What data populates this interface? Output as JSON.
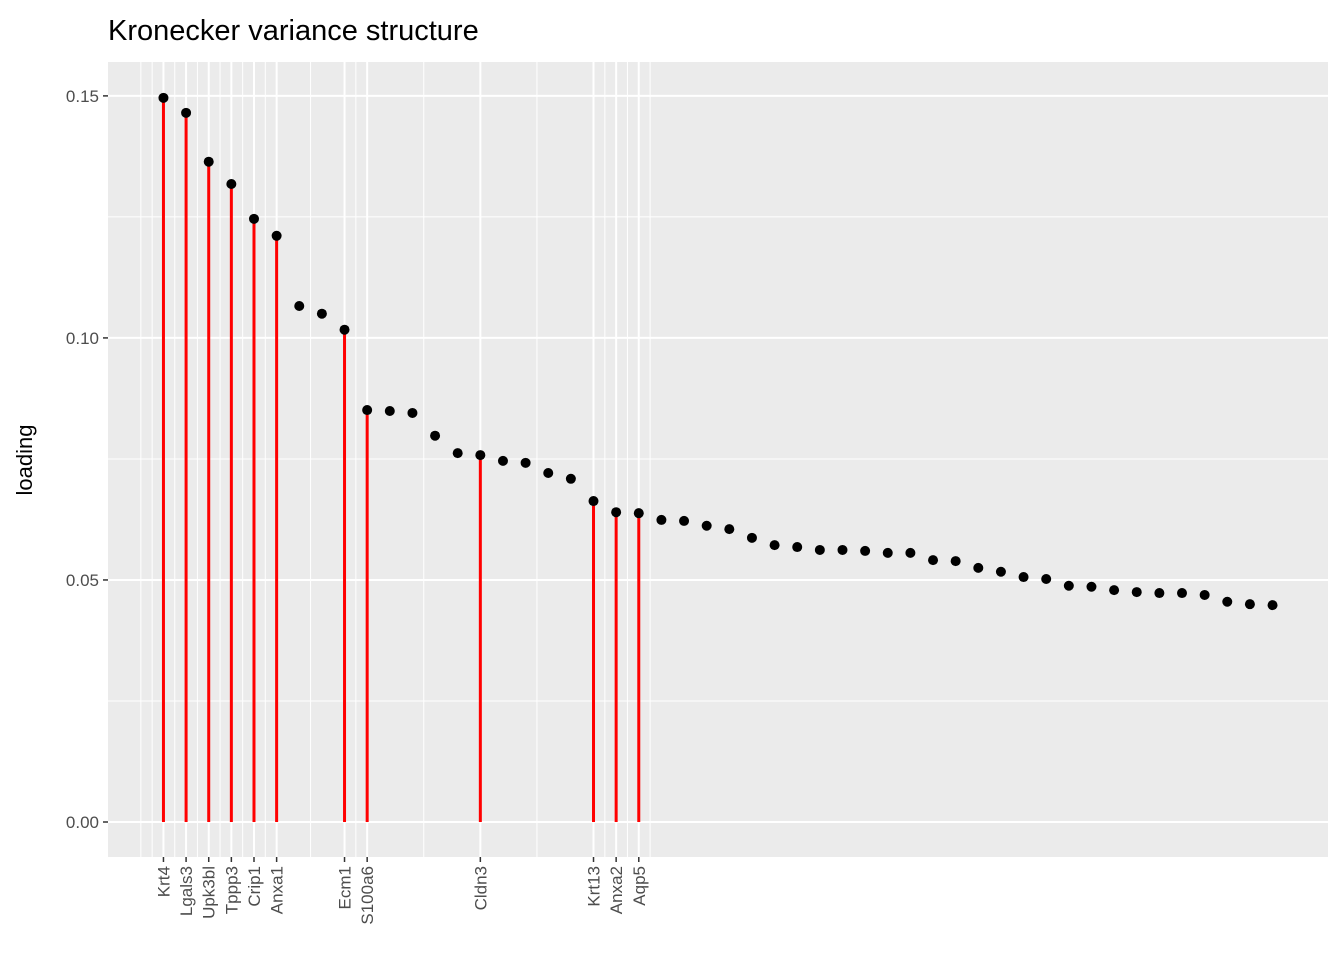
{
  "chart_data": {
    "type": "lollipop",
    "title": "Kronecker variance structure",
    "y_label": "loading",
    "x": [
      1,
      2,
      3,
      4,
      5,
      6,
      7,
      8,
      9,
      10,
      11,
      12,
      13,
      14,
      15,
      16,
      17,
      18,
      19,
      20,
      21,
      22,
      23,
      24,
      25,
      26,
      27,
      28,
      29,
      30,
      31,
      32,
      33,
      34,
      35,
      36,
      37,
      38,
      39,
      40,
      41,
      42,
      43,
      44,
      45,
      46,
      47,
      48,
      49,
      50
    ],
    "values": [
      0.1496,
      0.1465,
      0.1364,
      0.1318,
      0.1246,
      0.1211,
      0.1066,
      0.105,
      0.1017,
      0.0851,
      0.0849,
      0.0845,
      0.0798,
      0.0762,
      0.0758,
      0.0746,
      0.0742,
      0.0721,
      0.0709,
      0.0663,
      0.064,
      0.0638,
      0.0624,
      0.0622,
      0.0612,
      0.0605,
      0.0587,
      0.0572,
      0.0568,
      0.0562,
      0.0562,
      0.056,
      0.0556,
      0.0556,
      0.0541,
      0.0539,
      0.0525,
      0.0517,
      0.0506,
      0.0502,
      0.0488,
      0.0486,
      0.0479,
      0.0475,
      0.0473,
      0.0473,
      0.0469,
      0.0455,
      0.045,
      0.0448
    ],
    "color": "#000000",
    "stem_color": "#ff0000",
    "xlim": [
      -1.45,
      52.45
    ],
    "xticks": [
      {
        "value": 1,
        "label": "Krt4"
      },
      {
        "value": 2,
        "label": "Lgals3"
      },
      {
        "value": 3,
        "label": "Upk3bl"
      },
      {
        "value": 4,
        "label": "Tppp3"
      },
      {
        "value": 5,
        "label": "Crip1"
      },
      {
        "value": 6,
        "label": "Anxa1"
      },
      {
        "value": 9,
        "label": "Ecm1"
      },
      {
        "value": 10,
        "label": "S100a6"
      },
      {
        "value": 15,
        "label": "Cldn3"
      },
      {
        "value": 20,
        "label": "Krt13"
      },
      {
        "value": 21,
        "label": "Anxa2"
      },
      {
        "value": 22,
        "label": "Aqp5"
      }
    ],
    "ylim": [
      -0.00723,
      0.157
    ],
    "yticks": [
      {
        "value": 0,
        "label": "0.00"
      },
      {
        "value": 0.05,
        "label": "0.05"
      },
      {
        "value": 0.1,
        "label": "0.10"
      },
      {
        "value": 0.15,
        "label": "0.15"
      }
    ],
    "grid": true
  }
}
